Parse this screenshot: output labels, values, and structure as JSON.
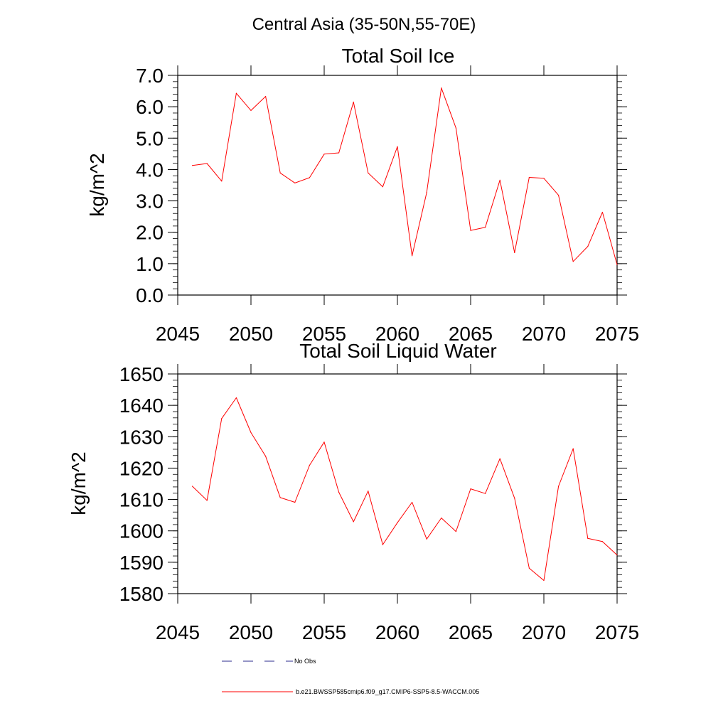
{
  "main_title": "Central Asia (35-50N,55-70E)",
  "chart_data": [
    {
      "type": "line",
      "title": "Total Soil Ice",
      "ylabel": "kg/m^2",
      "xlabel": "",
      "xlim": [
        2045,
        2075
      ],
      "ylim": [
        0,
        7
      ],
      "x_ticks": [
        2045,
        2050,
        2055,
        2060,
        2065,
        2070,
        2075
      ],
      "y_ticks": [
        0,
        1,
        2,
        3,
        4,
        5,
        6,
        7
      ],
      "y_tick_labels": [
        "0.0",
        "1.0",
        "2.0",
        "3.0",
        "4.0",
        "5.0",
        "6.0",
        "7.0"
      ],
      "grid": false,
      "series": [
        {
          "color": "#ff0000",
          "x": [
            2046,
            2047,
            2048,
            2049,
            2050,
            2051,
            2052,
            2053,
            2054,
            2055,
            2056,
            2057,
            2058,
            2059,
            2060,
            2061,
            2062,
            2063,
            2064,
            2065,
            2066,
            2067,
            2068,
            2069,
            2070,
            2071,
            2072,
            2073,
            2074,
            2075
          ],
          "values": [
            4.13,
            4.19,
            3.63,
            6.43,
            5.88,
            6.33,
            3.89,
            3.57,
            3.74,
            4.49,
            4.53,
            6.15,
            3.89,
            3.45,
            4.73,
            1.25,
            3.27,
            6.6,
            5.32,
            2.06,
            2.16,
            3.66,
            1.35,
            3.75,
            3.72,
            3.18,
            1.07,
            1.55,
            2.64,
            0.97
          ]
        }
      ]
    },
    {
      "type": "line",
      "title": "Total Soil Liquid Water",
      "ylabel": "kg/m^2",
      "xlabel": "",
      "xlim": [
        2045,
        2075
      ],
      "ylim": [
        1580,
        1650
      ],
      "x_ticks": [
        2045,
        2050,
        2055,
        2060,
        2065,
        2070,
        2075
      ],
      "y_ticks": [
        1580,
        1590,
        1600,
        1610,
        1620,
        1630,
        1640,
        1650
      ],
      "y_tick_labels": [
        "1580",
        "1590",
        "1600",
        "1610",
        "1620",
        "1630",
        "1640",
        "1650"
      ],
      "grid": false,
      "series": [
        {
          "color": "#ff0000",
          "x": [
            2046,
            2047,
            2048,
            2049,
            2050,
            2051,
            2052,
            2053,
            2054,
            2055,
            2056,
            2057,
            2058,
            2059,
            2060,
            2061,
            2062,
            2063,
            2064,
            2065,
            2066,
            2067,
            2068,
            2069,
            2070,
            2071,
            2072,
            2073,
            2074,
            2075
          ],
          "values": [
            1614.2,
            1609.7,
            1635.8,
            1642.4,
            1631.3,
            1623.8,
            1610.6,
            1609.1,
            1620.9,
            1628.3,
            1612.3,
            1602.9,
            1612.7,
            1595.6,
            1602.6,
            1609.1,
            1597.4,
            1604.1,
            1599.8,
            1613.4,
            1611.9,
            1623.0,
            1610.4,
            1588.1,
            1584.2,
            1614.2,
            1626.2,
            1597.6,
            1596.6,
            1592.3
          ]
        }
      ]
    }
  ],
  "legend": [
    {
      "label": "No Obs",
      "style": "dashed",
      "color": "#2b2b8c"
    },
    {
      "label": "b.e21.BWSSP585cmip6.f09_g17.CMIP6-SSP5-8.5-WACCM.005",
      "style": "solid",
      "color": "#ff0000"
    }
  ]
}
